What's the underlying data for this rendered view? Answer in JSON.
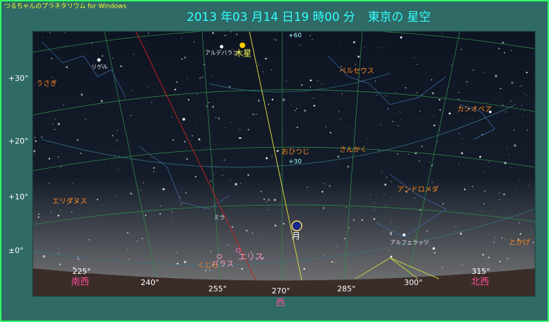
{
  "window": {
    "title": "つるちゃんのプラネタリウム for Windows"
  },
  "header": {
    "date": "2013 年03 月14 日19 時00 分",
    "place": "東京の 星空"
  },
  "altitude_labels": [
    "+30°",
    "+20°",
    "+10°",
    "±0°"
  ],
  "azimuth_labels": [
    "225°",
    "240°",
    "255°",
    "270°",
    "285°",
    "300°",
    "315°"
  ],
  "directions": [
    "南西",
    "西",
    "北西"
  ],
  "grid_labels": [
    "+60",
    "+30"
  ],
  "constellations": [
    "うさぎ",
    "ペルセウス",
    "カシオペア",
    "おひつじ",
    "さんかく",
    "アンドロメダ",
    "エリダヌス",
    "とかげ",
    "くじら"
  ],
  "stars": [
    "リゲル",
    "アルデバラン",
    "ミラ",
    "アルフェラッツ"
  ],
  "planets": [
    "木星",
    "月",
    "エリス",
    "パラス"
  ]
}
